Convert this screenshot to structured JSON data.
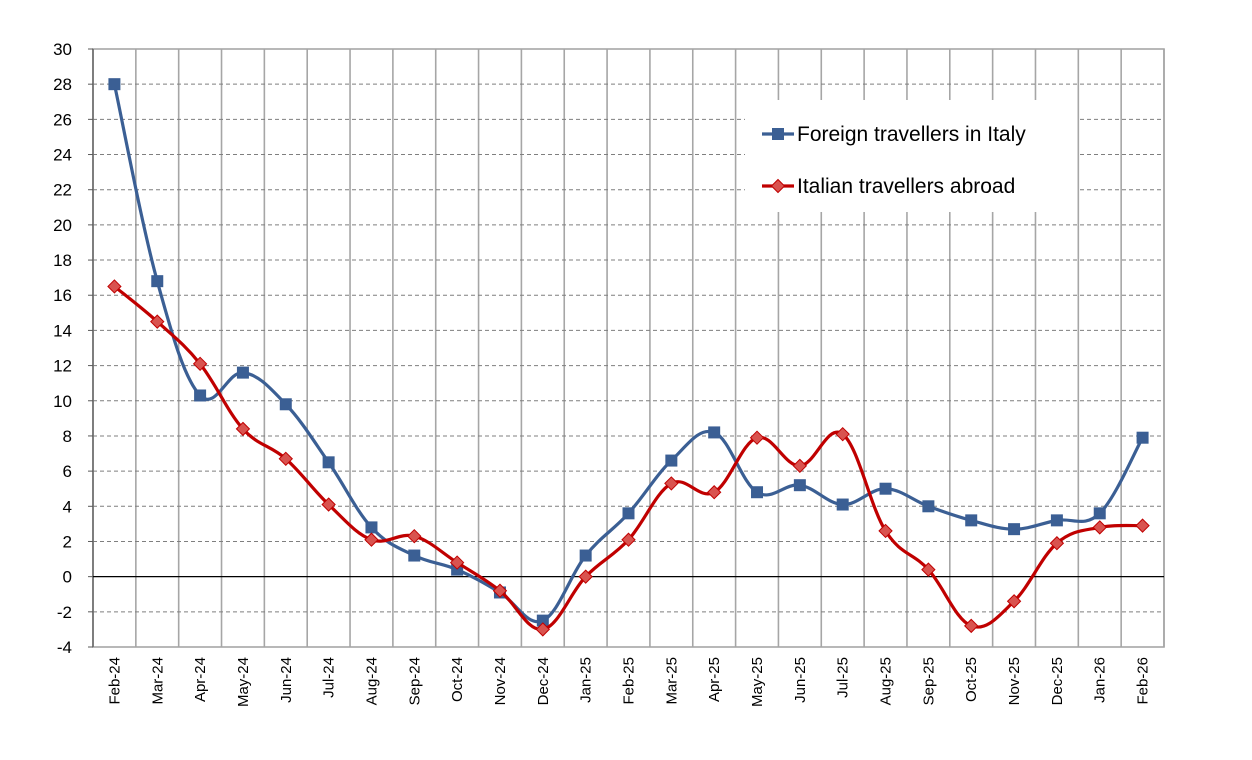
{
  "chart_data": {
    "type": "line",
    "title": "",
    "xlabel": "",
    "ylabel": "",
    "categories": [
      "Feb-24",
      "Mar-24",
      "Apr-24",
      "May-24",
      "Jun-24",
      "Jul-24",
      "Aug-24",
      "Sep-24",
      "Oct-24",
      "Nov-24",
      "Dec-24",
      "Jan-25",
      "Feb-25",
      "Mar-25",
      "Apr-25",
      "May-25",
      "Jun-25",
      "Jul-25",
      "Aug-25",
      "Sep-25",
      "Oct-25",
      "Nov-25",
      "Dec-25",
      "Jan-26",
      "Feb-26"
    ],
    "ylim": [
      -4,
      30
    ],
    "yticks": [
      -4,
      -2,
      0,
      2,
      4,
      6,
      8,
      10,
      12,
      14,
      16,
      18,
      20,
      22,
      24,
      26,
      28,
      30
    ],
    "grid": true,
    "legend_position": "top-right",
    "series": [
      {
        "name": "Foreign travellers in Italy",
        "color": "#3B5F94",
        "marker": "square",
        "values": [
          28.0,
          16.8,
          10.3,
          11.6,
          9.8,
          6.5,
          2.8,
          1.2,
          0.4,
          -0.9,
          -2.5,
          1.2,
          3.6,
          6.6,
          8.2,
          4.8,
          5.2,
          4.1,
          5.0,
          4.0,
          3.2,
          2.7,
          3.2,
          3.6,
          7.9
        ]
      },
      {
        "name": "Italian travellers abroad",
        "color": "#C00000",
        "marker_fill": "#D9534F",
        "marker": "diamond",
        "values": [
          16.5,
          14.5,
          12.1,
          8.4,
          6.7,
          4.1,
          2.1,
          2.3,
          0.8,
          -0.8,
          -3.0,
          0.0,
          2.1,
          5.3,
          4.8,
          7.9,
          6.3,
          8.1,
          2.6,
          0.4,
          -2.8,
          -1.4,
          1.9,
          2.8,
          2.9
        ]
      }
    ]
  }
}
